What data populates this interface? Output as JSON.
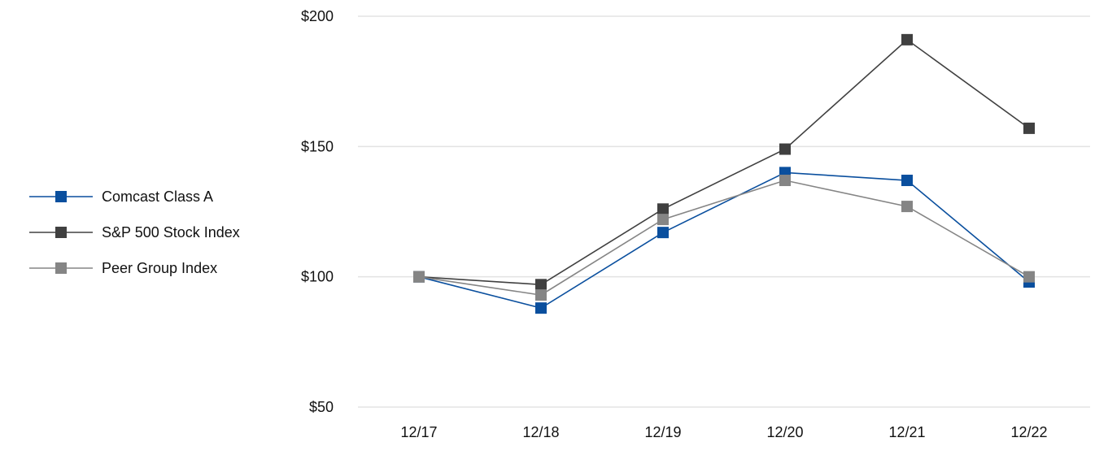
{
  "chart_data": {
    "type": "line",
    "title": "",
    "xlabel": "",
    "ylabel": "",
    "categories": [
      "12/17",
      "12/18",
      "12/19",
      "12/20",
      "12/21",
      "12/22"
    ],
    "ylim": [
      50,
      200
    ],
    "yticks": [
      50,
      100,
      150,
      200
    ],
    "ytick_labels": [
      "$50",
      "$100",
      "$150",
      "$200"
    ],
    "grid": "horizontal",
    "legend_position": "left",
    "series": [
      {
        "name": "Comcast Class A",
        "color": "#0a4f9e",
        "values": [
          100,
          88,
          117,
          140,
          137,
          98
        ]
      },
      {
        "name": "S&P 500 Stock Index",
        "color": "#404040",
        "values": [
          100,
          97,
          126,
          149,
          191,
          157
        ]
      },
      {
        "name": "Peer Group Index",
        "color": "#858585",
        "values": [
          100,
          93,
          122,
          137,
          127,
          100
        ]
      }
    ]
  }
}
